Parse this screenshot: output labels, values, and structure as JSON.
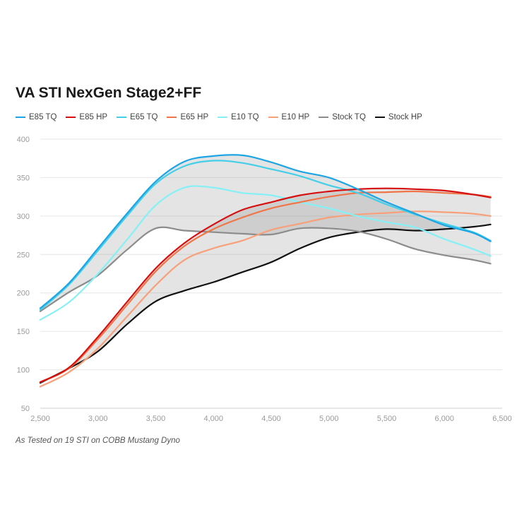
{
  "chart_data": {
    "type": "line",
    "title": "VA STI NexGen Stage2+FF",
    "caption": "As Tested on 19 STI on COBB Mustang Dyno",
    "xlabel": "",
    "ylabel": "",
    "xlim": [
      2500,
      6500
    ],
    "ylim": [
      50,
      400
    ],
    "x_ticks": [
      2500,
      3000,
      3500,
      4000,
      4500,
      5000,
      5500,
      6000,
      6500
    ],
    "x_tick_labels": [
      "2,500",
      "3,000",
      "3,500",
      "4,000",
      "4,500",
      "5,000",
      "5,500",
      "6,000",
      "6,500"
    ],
    "y_ticks": [
      50,
      100,
      150,
      200,
      250,
      300,
      350,
      400
    ],
    "y_tick_labels": [
      "50",
      "100",
      "150",
      "200",
      "250",
      "300",
      "350",
      "400"
    ],
    "grid": true,
    "legend_position": "top-left",
    "x": [
      2500,
      2750,
      3000,
      3250,
      3500,
      3750,
      4000,
      4250,
      4500,
      4750,
      5000,
      5250,
      5500,
      5750,
      6000,
      6250,
      6400
    ],
    "shaded_bands": [
      {
        "upper": "E85 TQ",
        "lower": "Stock TQ"
      },
      {
        "upper": "E85 HP",
        "lower": "Stock HP"
      }
    ],
    "series": [
      {
        "name": "E85 TQ",
        "color": "#1ea5e3",
        "values": [
          180,
          213,
          258,
          303,
          345,
          371,
          378,
          379,
          370,
          358,
          350,
          335,
          318,
          303,
          288,
          278,
          267
        ]
      },
      {
        "name": "E85 HP",
        "color": "#d61010",
        "values": [
          84,
          103,
          143,
          188,
          232,
          265,
          289,
          308,
          318,
          327,
          332,
          335,
          336,
          335,
          333,
          328,
          324
        ]
      },
      {
        "name": "E65 TQ",
        "color": "#44cfe8",
        "values": [
          178,
          211,
          255,
          300,
          342,
          365,
          372,
          369,
          361,
          352,
          340,
          330,
          315,
          302,
          290,
          279,
          268
        ]
      },
      {
        "name": "E65 HP",
        "color": "#f07548",
        "values": [
          84,
          102,
          140,
          184,
          228,
          261,
          283,
          298,
          310,
          318,
          325,
          330,
          331,
          332,
          330,
          328,
          325
        ]
      },
      {
        "name": "E10 TQ",
        "color": "#85f0f5",
        "values": [
          165,
          188,
          225,
          269,
          314,
          337,
          337,
          330,
          327,
          318,
          310,
          300,
          292,
          285,
          270,
          257,
          248
        ]
      },
      {
        "name": "E10 HP",
        "color": "#f7a07a",
        "values": [
          78,
          97,
          128,
          169,
          210,
          243,
          258,
          268,
          282,
          290,
          298,
          302,
          304,
          306,
          305,
          303,
          300
        ]
      },
      {
        "name": "Stock TQ",
        "color": "#8c8c8c",
        "values": [
          176,
          201,
          223,
          256,
          284,
          281,
          279,
          277,
          276,
          284,
          284,
          280,
          270,
          257,
          249,
          243,
          238
        ]
      },
      {
        "name": "Stock HP",
        "color": "#111111",
        "values": [
          83,
          102,
          124,
          159,
          189,
          203,
          214,
          227,
          240,
          258,
          272,
          279,
          283,
          281,
          283,
          286,
          289
        ]
      }
    ]
  }
}
